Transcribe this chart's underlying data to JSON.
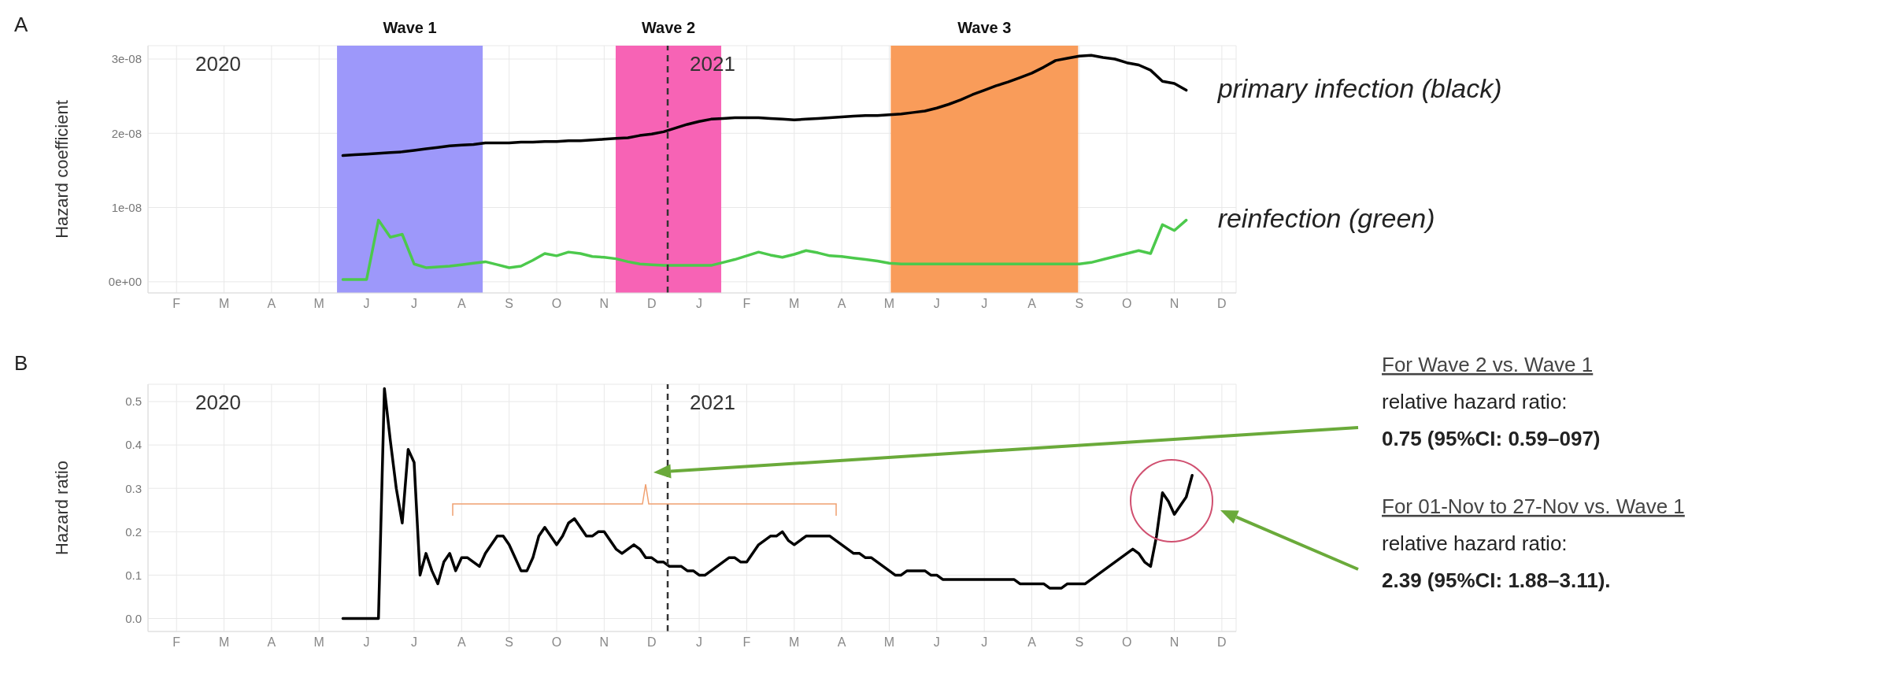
{
  "chart_data": [
    {
      "type": "line",
      "title": "A",
      "ylabel": "Hazard coefficient",
      "ylim": [
        -1.5e-09,
        3.18e-08
      ],
      "categories": [
        "F",
        null,
        null,
        null,
        "M",
        null,
        null,
        null,
        "A",
        null,
        null,
        null,
        "M",
        null,
        null,
        null,
        "J",
        null,
        null,
        null,
        "J",
        null,
        null,
        null,
        "A",
        null,
        null,
        null,
        "S",
        null,
        null,
        null,
        "O",
        null,
        null,
        null,
        "N",
        null,
        null,
        null,
        "D",
        null,
        null,
        null,
        "J",
        null,
        null,
        null,
        "F",
        null,
        null,
        null,
        "M",
        null,
        null,
        null,
        "A",
        null,
        null,
        null,
        "M",
        null,
        null,
        null,
        "J",
        null,
        null,
        null,
        "J",
        null,
        null,
        null,
        "A",
        null,
        null,
        null,
        "S",
        null,
        null,
        null,
        "O",
        null,
        null,
        null,
        "N",
        null,
        null,
        null,
        "D",
        null,
        null,
        null
      ],
      "yticks": [
        {
          "value": 0,
          "label": "0e+00"
        },
        {
          "value": 1e-08,
          "label": "1e-08"
        },
        {
          "value": 2e-08,
          "label": "2e-08"
        },
        {
          "value": 3e-08,
          "label": "3e-08"
        }
      ],
      "grid": true,
      "annotations": [
        "2020",
        "2021",
        "Wave 1",
        "Wave 2",
        "Wave 3"
      ],
      "series": [
        {
          "name": "primary infection (black)",
          "color": "#000000",
          "values": [
            null,
            null,
            null,
            null,
            null,
            null,
            null,
            null,
            null,
            null,
            null,
            null,
            null,
            null,
            1.7e-08,
            1.71e-08,
            1.72e-08,
            1.73e-08,
            1.74e-08,
            1.75e-08,
            1.77e-08,
            1.79e-08,
            1.81e-08,
            1.83e-08,
            1.84e-08,
            1.85e-08,
            1.87e-08,
            1.87e-08,
            1.87e-08,
            1.88e-08,
            1.88e-08,
            1.89e-08,
            1.89e-08,
            1.9e-08,
            1.9e-08,
            1.91e-08,
            1.92e-08,
            1.93e-08,
            1.94e-08,
            1.97e-08,
            1.99e-08,
            2.02e-08,
            2.07e-08,
            2.12e-08,
            2.16e-08,
            2.19e-08,
            2.2e-08,
            2.21e-08,
            2.21e-08,
            2.21e-08,
            2.2e-08,
            2.19e-08,
            2.18e-08,
            2.19e-08,
            2.2e-08,
            2.21e-08,
            2.22e-08,
            2.23e-08,
            2.24e-08,
            2.24e-08,
            2.25e-08,
            2.26e-08,
            2.28e-08,
            2.3e-08,
            2.34e-08,
            2.39e-08,
            2.45e-08,
            2.52e-08,
            2.58e-08,
            2.64e-08,
            2.69e-08,
            2.75e-08,
            2.81e-08,
            2.89e-08,
            2.98e-08,
            3.01e-08,
            3.04e-08,
            3.05e-08,
            3.02e-08,
            3e-08,
            2.95e-08,
            2.92e-08,
            2.85e-08,
            2.7e-08,
            2.67e-08,
            2.58e-08,
            null,
            null,
            null,
            null,
            null,
            null
          ]
        },
        {
          "name": "reinfection (green)",
          "color": "#4cc94c",
          "values": [
            null,
            null,
            null,
            null,
            null,
            null,
            null,
            null,
            null,
            null,
            null,
            null,
            null,
            null,
            3e-10,
            3e-10,
            3e-10,
            8.3e-09,
            6e-09,
            6.4e-09,
            2.4e-09,
            1.9e-09,
            2e-09,
            2.1e-09,
            2.3e-09,
            2.5e-09,
            2.7e-09,
            2.3e-09,
            1.9e-09,
            2.1e-09,
            2.9e-09,
            3.8e-09,
            3.5e-09,
            4e-09,
            3.8e-09,
            3.4e-09,
            3.3e-09,
            3.1e-09,
            2.7e-09,
            2.4e-09,
            2.3e-09,
            2.2e-09,
            2.2e-09,
            2.2e-09,
            2.2e-09,
            2.2e-09,
            2.6e-09,
            3e-09,
            3.5e-09,
            4e-09,
            3.6e-09,
            3.3e-09,
            3.7e-09,
            4.2e-09,
            3.9e-09,
            3.5e-09,
            3.4e-09,
            3.2e-09,
            3e-09,
            2.8e-09,
            2.5e-09,
            2.4e-09,
            2.4e-09,
            2.4e-09,
            2.4e-09,
            2.4e-09,
            2.4e-09,
            2.4e-09,
            2.4e-09,
            2.4e-09,
            2.4e-09,
            2.4e-09,
            2.4e-09,
            2.4e-09,
            2.4e-09,
            2.4e-09,
            2.4e-09,
            2.6e-09,
            3e-09,
            3.4e-09,
            3.8e-09,
            4.2e-09,
            3.8e-09,
            7.7e-09,
            6.9e-09,
            8.3e-09,
            null,
            null,
            null,
            null,
            null,
            null
          ]
        }
      ]
    },
    {
      "type": "line",
      "title": "B",
      "ylabel": "Hazard ratio",
      "ylim": [
        -0.03,
        0.54
      ],
      "categories": [
        "F",
        null,
        null,
        null,
        null,
        null,
        null,
        null,
        "M",
        null,
        null,
        null,
        null,
        null,
        null,
        null,
        "A",
        null,
        null,
        null,
        null,
        null,
        null,
        null,
        "M",
        null,
        null,
        null,
        null,
        null,
        null,
        null,
        "J",
        null,
        null,
        null,
        null,
        null,
        null,
        null,
        "J",
        null,
        null,
        null,
        null,
        null,
        null,
        null,
        "A",
        null,
        null,
        null,
        null,
        null,
        null,
        null,
        "S",
        null,
        null,
        null,
        null,
        null,
        null,
        null,
        "O",
        null,
        null,
        null,
        null,
        null,
        null,
        null,
        "N",
        null,
        null,
        null,
        null,
        null,
        null,
        null,
        "D",
        null,
        null,
        null,
        null,
        null,
        null,
        null,
        "J",
        null,
        null,
        null,
        null,
        null,
        null,
        null,
        "F",
        null,
        null,
        null,
        null,
        null,
        null,
        null,
        "M",
        null,
        null,
        null,
        null,
        null,
        null,
        null,
        "A",
        null,
        null,
        null,
        null,
        null,
        null,
        null,
        "M",
        null,
        null,
        null,
        null,
        null,
        null,
        null,
        "J",
        null,
        null,
        null,
        null,
        null,
        null,
        null,
        "J",
        null,
        null,
        null,
        null,
        null,
        null,
        null,
        "A",
        null,
        null,
        null,
        null,
        null,
        null,
        null,
        "S",
        null,
        null,
        null,
        null,
        null,
        null,
        null,
        "O",
        null,
        null,
        null,
        null,
        null,
        null,
        null,
        "N",
        null,
        null,
        null,
        null,
        null,
        null,
        null,
        "D",
        null,
        null,
        null,
        null,
        null,
        null,
        null
      ],
      "yticks": [
        {
          "value": 0,
          "label": "0.0"
        },
        0.1,
        0.2,
        0.3,
        0.4,
        0.5
      ],
      "grid": true,
      "annotations": [
        "2020",
        "2021",
        "For Wave 2 vs. Wave 1\nrelative hazard ratio:\n0.75 (95%CI: 0.59–097)",
        "For 01-Nov to 27-Nov vs. Wave 1\nrelative hazard ratio:\n2.39 (95%CI: 1.88–3.11)."
      ],
      "series": [
        {
          "color": "#000000",
          "values": [
            null,
            null,
            null,
            null,
            null,
            null,
            null,
            null,
            null,
            null,
            null,
            null,
            null,
            null,
            null,
            null,
            null,
            null,
            null,
            null,
            null,
            null,
            null,
            null,
            null,
            null,
            null,
            null,
            0,
            0,
            0,
            0,
            0,
            0,
            0,
            0.53,
            0.41,
            0.3,
            0.22,
            0.39,
            0.36,
            0.1,
            0.15,
            0.11,
            0.08,
            0.13,
            0.15,
            0.11,
            0.14,
            0.14,
            0.13,
            0.12,
            0.15,
            0.17,
            0.19,
            0.19,
            0.17,
            0.14,
            0.11,
            0.11,
            0.14,
            0.19,
            0.21,
            0.19,
            0.17,
            0.19,
            0.22,
            0.23,
            0.21,
            0.19,
            0.19,
            0.2,
            0.2,
            0.18,
            0.16,
            0.15,
            0.16,
            0.17,
            0.16,
            0.14,
            0.14,
            0.13,
            0.13,
            0.12,
            0.12,
            0.12,
            0.11,
            0.11,
            0.1,
            0.1,
            0.11,
            0.12,
            0.13,
            0.14,
            0.14,
            0.13,
            0.13,
            0.15,
            0.17,
            0.18,
            0.19,
            0.19,
            0.2,
            0.18,
            0.17,
            0.18,
            0.19,
            0.19,
            0.19,
            0.19,
            0.19,
            0.18,
            0.17,
            0.16,
            0.15,
            0.15,
            0.14,
            0.14,
            0.13,
            0.12,
            0.11,
            0.1,
            0.1,
            0.11,
            0.11,
            0.11,
            0.11,
            0.1,
            0.1,
            0.09,
            0.09,
            0.09,
            0.09,
            0.09,
            0.09,
            0.09,
            0.09,
            0.09,
            0.09,
            0.09,
            0.09,
            0.09,
            0.08,
            0.08,
            0.08,
            0.08,
            0.08,
            0.07,
            0.07,
            0.07,
            0.08,
            0.08,
            0.08,
            0.08,
            0.09,
            0.1,
            0.11,
            0.12,
            0.13,
            0.14,
            0.15,
            0.16,
            0.15,
            0.13,
            0.12,
            0.19,
            0.29,
            0.27,
            0.24,
            0.26,
            0.28,
            0.33,
            null,
            null,
            null,
            null,
            null,
            null,
            null,
            null,
            null,
            null,
            null,
            null
          ]
        }
      ]
    }
  ]
}
